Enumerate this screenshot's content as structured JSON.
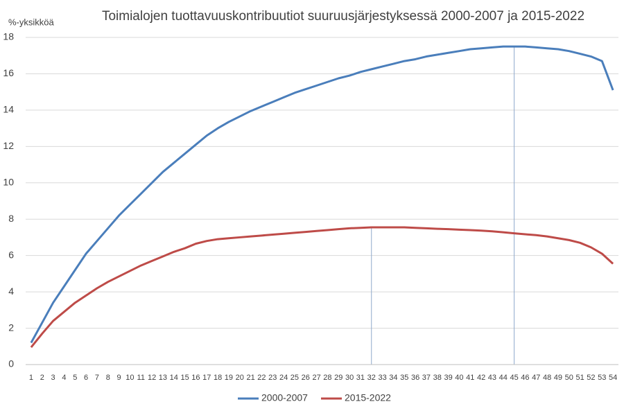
{
  "chart_data": {
    "type": "line",
    "title": "Toimialojen tuottavuuskontribuutiot suuruusjärjestyksessä 2000-2007 ja 2015-2022",
    "y_label": "%-yksikköä",
    "categories": [
      "1",
      "2",
      "3",
      "4",
      "5",
      "6",
      "7",
      "8",
      "9",
      "10",
      "11",
      "12",
      "13",
      "14",
      "15",
      "16",
      "17",
      "18",
      "19",
      "20",
      "21",
      "22",
      "23",
      "24",
      "25",
      "26",
      "27",
      "28",
      "29",
      "30",
      "31",
      "32",
      "33",
      "34",
      "35",
      "36",
      "37",
      "38",
      "39",
      "40",
      "41",
      "42",
      "43",
      "44",
      "45",
      "46",
      "47",
      "48",
      "49",
      "50",
      "51",
      "52",
      "53",
      "54"
    ],
    "series": [
      {
        "name": "2000-2007",
        "color": "#4a7ebb",
        "values": [
          1.2,
          2.3,
          3.4,
          4.3,
          5.2,
          6.1,
          6.8,
          7.5,
          8.2,
          8.8,
          9.4,
          10.0,
          10.6,
          11.1,
          11.6,
          12.1,
          12.6,
          13.0,
          13.35,
          13.65,
          13.95,
          14.2,
          14.45,
          14.7,
          14.95,
          15.15,
          15.35,
          15.55,
          15.75,
          15.9,
          16.1,
          16.25,
          16.4,
          16.55,
          16.7,
          16.8,
          16.95,
          17.05,
          17.15,
          17.25,
          17.35,
          17.4,
          17.45,
          17.5,
          17.5,
          17.5,
          17.45,
          17.4,
          17.35,
          17.25,
          17.1,
          16.95,
          16.7,
          15.1
        ]
      },
      {
        "name": "2015-2022",
        "color": "#be4b48",
        "values": [
          0.95,
          1.7,
          2.4,
          2.9,
          3.4,
          3.8,
          4.2,
          4.55,
          4.85,
          5.15,
          5.45,
          5.7,
          5.95,
          6.2,
          6.4,
          6.65,
          6.8,
          6.9,
          6.95,
          7.0,
          7.05,
          7.1,
          7.15,
          7.2,
          7.25,
          7.3,
          7.35,
          7.4,
          7.45,
          7.5,
          7.52,
          7.55,
          7.55,
          7.55,
          7.55,
          7.52,
          7.5,
          7.47,
          7.45,
          7.42,
          7.4,
          7.37,
          7.33,
          7.28,
          7.22,
          7.17,
          7.12,
          7.05,
          6.95,
          6.85,
          6.7,
          6.45,
          6.1,
          5.55
        ]
      }
    ],
    "vlines": [
      {
        "category": 32,
        "series": 1
      },
      {
        "category": 45,
        "series": 0
      }
    ],
    "ylim": [
      0,
      18
    ],
    "yticks": [
      0,
      2,
      4,
      6,
      8,
      10,
      12,
      14,
      16,
      18
    ],
    "grid": true,
    "legend": "bottom"
  }
}
